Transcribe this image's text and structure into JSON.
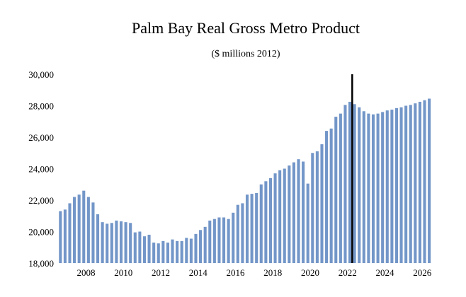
{
  "chart_data": {
    "type": "bar",
    "title": "Palm Bay Real Gross Metro Product",
    "subtitle": "($ millions 2012)",
    "xlabel": "",
    "ylabel": "",
    "ylim": [
      18000,
      30000
    ],
    "yticks": [
      18000,
      20000,
      22000,
      24000,
      26000,
      28000,
      30000
    ],
    "ytick_labels": [
      "18,000",
      "20,000",
      "22,000",
      "24,000",
      "26,000",
      "28,000",
      "30,000"
    ],
    "xticks": [
      2008,
      2010,
      2012,
      2014,
      2016,
      2018,
      2020,
      2022,
      2024,
      2026
    ],
    "xtick_labels": [
      "2008",
      "2010",
      "2012",
      "2014",
      "2016",
      "2018",
      "2020",
      "2022",
      "2024",
      "2026"
    ],
    "xlim": [
      2006.5,
      2026.75
    ],
    "frequency": "quarterly",
    "start": 2006.5,
    "bar_color": "#7396c8",
    "marker_x": 2022.25,
    "marker_color": "#000000",
    "values": [
      21300,
      21400,
      21800,
      22200,
      22350,
      22600,
      22200,
      21850,
      21100,
      20600,
      20500,
      20550,
      20700,
      20650,
      20600,
      20550,
      19950,
      20000,
      19700,
      19800,
      19300,
      19250,
      19400,
      19300,
      19500,
      19400,
      19400,
      19600,
      19550,
      19850,
      20100,
      20300,
      20700,
      20800,
      20900,
      20900,
      20800,
      21200,
      21700,
      21800,
      22350,
      22400,
      22450,
      23000,
      23200,
      23400,
      23700,
      23900,
      24000,
      24200,
      24400,
      24600,
      24450,
      23050,
      25000,
      25100,
      25550,
      26400,
      26550,
      27300,
      27500,
      28050,
      28250,
      28100,
      27900,
      27650,
      27500,
      27450,
      27500,
      27600,
      27700,
      27750,
      27850,
      27900,
      28000,
      28050,
      28150,
      28250,
      28350,
      28450
    ]
  }
}
